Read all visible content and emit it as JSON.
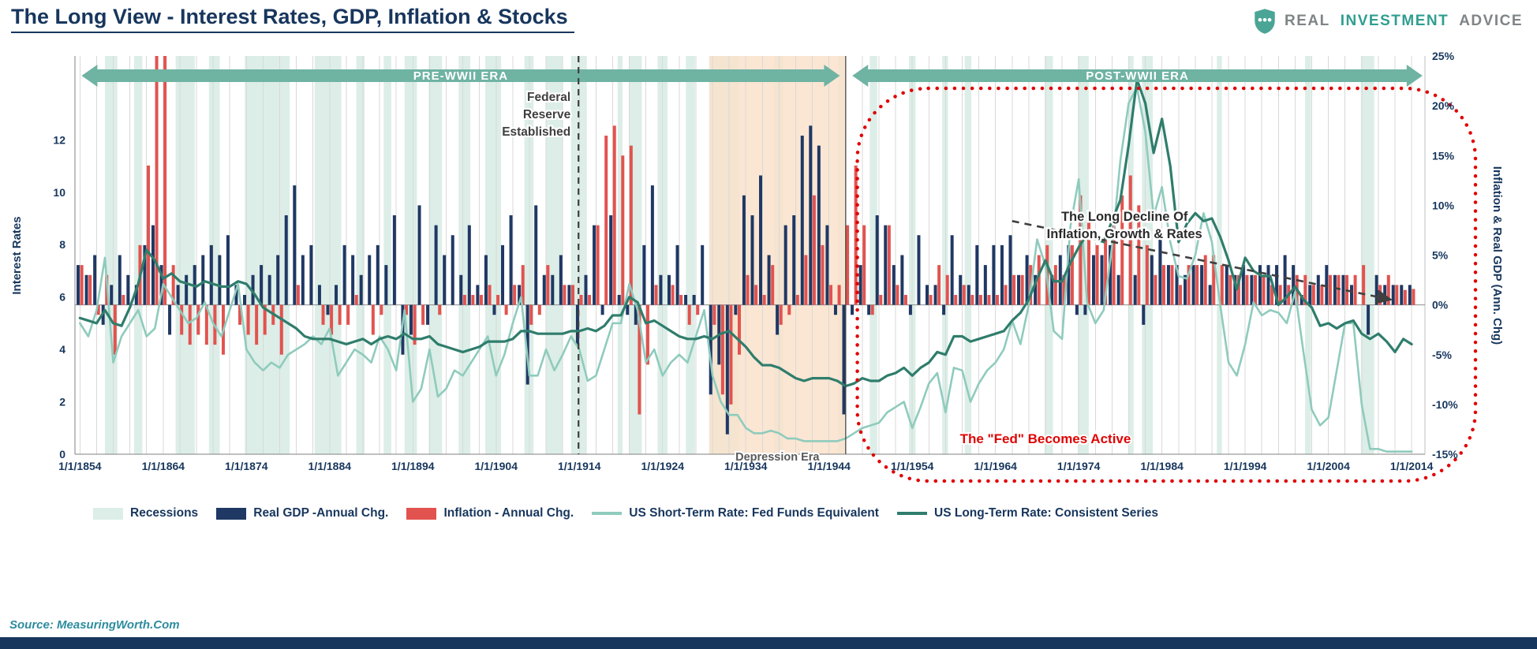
{
  "header": {
    "title": "The Long View - Interest Rates, GDP, Inflation & Stocks",
    "brand": {
      "word1": "REAL",
      "word2": "INVESTMENT",
      "word3": "ADVICE"
    }
  },
  "legend": {
    "items": [
      {
        "label": "Recessions",
        "swatch": "box",
        "color": "#dceee7"
      },
      {
        "label": "Real GDP -Annual Chg.",
        "swatch": "box",
        "color": "#1f3864"
      },
      {
        "label": "Inflation - Annual Chg.",
        "swatch": "box",
        "color": "#e2534f"
      },
      {
        "label": "US Short-Term Rate: Fed Funds Equivalent",
        "swatch": "line",
        "color": "#8fcbbd"
      },
      {
        "label": "US Long-Term Rate: Consistent Series",
        "swatch": "line",
        "color": "#2f7d6c"
      }
    ]
  },
  "footer": {
    "source": "Source: MeasuringWorth.Com"
  },
  "chart_data": {
    "type": "combo-bar-line",
    "title": "The Long View - Interest Rates, GDP, Inflation & Stocks",
    "start_year": 1854,
    "end_year": 2014,
    "x_ticks": {
      "years": [
        1854,
        1864,
        1874,
        1884,
        1894,
        1904,
        1914,
        1924,
        1934,
        1944,
        1954,
        1964,
        1974,
        1984,
        1994,
        2004,
        2014
      ],
      "labels": [
        "1/1/1854",
        "1/1/1864",
        "1/1/1874",
        "1/1/1884",
        "1/1/1894",
        "1/1/1904",
        "1/1/1914",
        "1/1/1924",
        "1/1/1934",
        "1/1/1944",
        "1/1/1954",
        "1/1/1964",
        "1/1/1974",
        "1/1/1984",
        "1/1/1994",
        "1/1/2004",
        "1/1/2014"
      ]
    },
    "left_axis": {
      "title": "Interest Rates",
      "min": 0,
      "max": 15.2,
      "ticks": [
        0,
        2,
        4,
        6,
        8,
        10,
        12
      ]
    },
    "right_axis": {
      "title": "Inflation & Real GDP (Ann. Chg)",
      "min": -15,
      "max": 25,
      "tick_values": [
        25,
        20,
        15,
        10,
        5,
        0,
        -5,
        -10,
        -15
      ],
      "tick_labels": [
        "25%",
        "20%",
        "15%",
        "10%",
        "5%",
        "0%",
        "-5%",
        "-10%",
        "-15%"
      ]
    },
    "series": [
      {
        "name": "Real GDP -Annual Chg.",
        "type": "bar",
        "axis": "right",
        "color": "#1f3864",
        "values": [
          4,
          3,
          5,
          -2,
          2,
          5,
          3,
          2,
          6,
          8,
          4,
          -3,
          2,
          3,
          4,
          5,
          6,
          5,
          7,
          2,
          1,
          3,
          4,
          3,
          5,
          9,
          12,
          5,
          6,
          2,
          -1,
          2,
          6,
          5,
          3,
          5,
          6,
          4,
          9,
          -5,
          -3,
          10,
          -2,
          8,
          5,
          7,
          3,
          8,
          2,
          5,
          -1,
          6,
          9,
          2,
          -8,
          10,
          3,
          3,
          5,
          2,
          -4,
          3,
          8,
          -1,
          9,
          1,
          -1,
          -2,
          6,
          12,
          3,
          3,
          6,
          1,
          1,
          6,
          -9,
          -6,
          -13,
          -1,
          11,
          9,
          13,
          5,
          -3,
          8,
          9,
          17,
          18,
          16,
          8,
          -1,
          -11,
          -1,
          4,
          -1,
          9,
          8,
          4,
          5,
          -1,
          7,
          2,
          2,
          -1,
          7,
          3,
          2,
          6,
          4,
          6,
          6,
          7,
          3,
          5,
          3,
          0,
          3,
          5,
          6,
          -1,
          -1,
          5,
          5,
          6,
          3,
          0,
          3,
          -2,
          5,
          7,
          4,
          4,
          3,
          4,
          4,
          2,
          0,
          4,
          3,
          4,
          3,
          4,
          4,
          4,
          5,
          4,
          1,
          2,
          3,
          4,
          3,
          3,
          2,
          0,
          -3,
          3,
          2,
          2,
          2,
          2
        ]
      },
      {
        "name": "Inflation - Annual Chg.",
        "type": "bar",
        "axis": "right",
        "color": "#e2534f",
        "values": [
          4,
          3,
          -1,
          3,
          -5,
          1,
          0,
          6,
          14,
          25,
          25,
          4,
          -3,
          -4,
          -3,
          -4,
          -4,
          -5,
          0,
          -2,
          -3,
          -4,
          -3,
          -2,
          -5,
          0,
          2,
          0,
          0,
          -2,
          -3,
          -2,
          -2,
          1,
          0,
          -3,
          -1,
          0,
          0,
          -1,
          -4,
          -2,
          0,
          -1,
          0,
          0,
          1,
          1,
          1,
          2,
          1,
          -1,
          2,
          4,
          -2,
          -1,
          4,
          0,
          2,
          2,
          1,
          1,
          8,
          17,
          18,
          15,
          16,
          -11,
          -6,
          2,
          0,
          2,
          1,
          -2,
          -1,
          0,
          -2,
          -9,
          -10,
          -5,
          3,
          2,
          1,
          4,
          -2,
          -1,
          1,
          5,
          11,
          6,
          2,
          2,
          8,
          14,
          8,
          -1,
          1,
          8,
          2,
          1,
          0,
          0,
          1,
          4,
          3,
          1,
          2,
          1,
          1,
          1,
          1,
          2,
          3,
          3,
          4,
          5,
          6,
          4,
          3,
          6,
          11,
          9,
          6,
          7,
          8,
          11,
          13,
          10,
          6,
          3,
          4,
          4,
          2,
          4,
          4,
          5,
          5,
          4,
          3,
          3,
          3,
          3,
          3,
          2,
          2,
          2,
          3,
          3,
          2,
          2,
          3,
          3,
          3,
          3,
          4,
          0,
          2,
          3,
          2,
          1.5,
          1.6
        ]
      },
      {
        "name": "US Short-Term Rate: Fed Funds Equivalent",
        "type": "line",
        "axis": "left",
        "color": "#8fcbbd",
        "values": [
          5,
          4.5,
          5.5,
          7.5,
          3.5,
          4.5,
          5,
          5.5,
          4.5,
          4.8,
          6.5,
          6,
          5.5,
          5,
          5.2,
          5.8,
          5,
          4.5,
          5.5,
          6.5,
          4,
          3.5,
          3.2,
          3.5,
          3.3,
          3.8,
          4,
          4.2,
          4.5,
          4.2,
          4.8,
          3,
          3.5,
          4,
          3.8,
          3.5,
          4.5,
          4,
          3.2,
          5.5,
          2,
          2.5,
          4,
          2.2,
          2.5,
          3.2,
          3,
          3.5,
          4,
          4.5,
          3,
          3.8,
          5,
          6,
          3,
          3,
          4,
          3.2,
          3.8,
          4.5,
          4,
          2.8,
          3,
          4,
          5,
          5,
          6.5,
          5.5,
          3.5,
          4,
          3,
          3.5,
          3.8,
          3.5,
          4.5,
          5.5,
          3,
          2,
          1.5,
          1.5,
          1,
          0.8,
          0.8,
          0.9,
          0.8,
          0.6,
          0.6,
          0.5,
          0.5,
          0.5,
          0.5,
          0.5,
          0.6,
          0.8,
          1,
          1.1,
          1.2,
          1.6,
          1.8,
          2,
          1,
          1.8,
          2.7,
          3.1,
          1.6,
          3.3,
          3.2,
          2,
          2.7,
          3.2,
          3.5,
          4,
          5.1,
          4.2,
          5.7,
          8.2,
          7.2,
          4.7,
          4.4,
          8.7,
          10.5,
          5.8,
          5,
          5.5,
          7.9,
          11.2,
          13.4,
          14,
          12.3,
          9.1,
          10.2,
          8.1,
          6.8,
          6.7,
          7.6,
          9.2,
          8.1,
          5.7,
          3.5,
          3,
          4.2,
          5.8,
          5.3,
          5.5,
          5.4,
          5,
          6.2,
          3.9,
          1.7,
          1.1,
          1.4,
          3.2,
          5,
          5,
          1.9,
          0.2,
          0.2,
          0.1,
          0.1,
          0.1,
          0.1
        ]
      },
      {
        "name": "US Long-Term Rate: Consistent Series",
        "type": "line",
        "axis": "left",
        "color": "#2f7d6c",
        "values": [
          5.2,
          5.1,
          5,
          5.5,
          5,
          4.9,
          5.6,
          6.5,
          7.8,
          7.4,
          6.7,
          6.9,
          6.6,
          6.5,
          6.4,
          6.6,
          6.5,
          6.4,
          6.4,
          6.6,
          6.5,
          6.1,
          5.6,
          5.4,
          5.2,
          5,
          4.8,
          4.5,
          4.4,
          4.4,
          4.4,
          4.3,
          4.2,
          4.3,
          4.4,
          4.2,
          4.4,
          4.5,
          4.4,
          4.6,
          4.4,
          4.4,
          4.5,
          4.2,
          4.1,
          4,
          3.9,
          4,
          4.1,
          4.3,
          4.3,
          4.3,
          4.4,
          4.7,
          4.7,
          4.6,
          4.6,
          4.6,
          4.6,
          4.7,
          4.7,
          4.8,
          4.7,
          4.9,
          5.3,
          5.3,
          6,
          5.8,
          5,
          5.1,
          4.9,
          4.7,
          4.5,
          4.4,
          4.4,
          4.5,
          4.4,
          4.6,
          4.7,
          4.4,
          4.1,
          3.7,
          3.4,
          3.4,
          3.3,
          3.1,
          2.9,
          2.8,
          2.9,
          2.9,
          2.9,
          2.8,
          2.6,
          2.7,
          2.9,
          2.8,
          2.8,
          3,
          3.1,
          3.3,
          3,
          3.3,
          3.5,
          3.9,
          3.8,
          4.5,
          4.5,
          4.3,
          4.4,
          4.5,
          4.6,
          4.7,
          5.1,
          5.4,
          5.9,
          6.7,
          7.4,
          6.6,
          6.6,
          7.3,
          7.9,
          8.4,
          8.2,
          8.1,
          8.9,
          9.7,
          11.8,
          14.3,
          13.4,
          11.5,
          12.8,
          11,
          8.1,
          8.8,
          9.2,
          8.9,
          9,
          8.3,
          7.4,
          6.3,
          7.5,
          7,
          6.8,
          6.8,
          5.7,
          6,
          6.4,
          5.9,
          5.6,
          4.9,
          5,
          4.8,
          5,
          5.1,
          4.6,
          4.4,
          4.6,
          4.3,
          3.9,
          4.4,
          4.2
        ]
      }
    ],
    "recessions": [
      [
        1857,
        1858.5
      ],
      [
        1860.5,
        1861.5
      ],
      [
        1865.5,
        1867.8
      ],
      [
        1869.5,
        1870.8
      ],
      [
        1873.8,
        1879.2
      ],
      [
        1882.2,
        1885.4
      ],
      [
        1887.2,
        1888.2
      ],
      [
        1890.5,
        1891.4
      ],
      [
        1893,
        1894.5
      ],
      [
        1895.9,
        1897.5
      ],
      [
        1899.5,
        1900.9
      ],
      [
        1902.7,
        1904.6
      ],
      [
        1907.4,
        1908.5
      ],
      [
        1910,
        1912
      ],
      [
        1913,
        1914.9
      ],
      [
        1918.6,
        1919.2
      ],
      [
        1920,
        1921.5
      ],
      [
        1923.4,
        1924.6
      ],
      [
        1926.8,
        1927.9
      ],
      [
        1929.6,
        1933.2
      ],
      [
        1937.4,
        1938.5
      ],
      [
        1945.1,
        1945.8
      ],
      [
        1948.9,
        1949.8
      ],
      [
        1953.6,
        1954.4
      ],
      [
        1957.6,
        1958.3
      ],
      [
        1960.3,
        1961.1
      ],
      [
        1969.9,
        1970.9
      ],
      [
        1973.9,
        1975.2
      ],
      [
        1980,
        1980.6
      ],
      [
        1981.6,
        1982.9
      ],
      [
        1990.6,
        1991.2
      ],
      [
        2001.2,
        2001.9
      ],
      [
        2007.9,
        2009.5
      ]
    ],
    "eras": {
      "pre": {
        "label": "PRE-WWII ERA",
        "start": 1854.2,
        "end": 1945.3
      },
      "post": {
        "label": "POST-WWII ERA",
        "start": 1946.8,
        "end": 2015.3
      },
      "divider_year": 1946,
      "arrow_color": "#6fb3a3"
    },
    "depression": {
      "label": "Depression Era",
      "start": 1929.6,
      "end": 1946,
      "color": "#f9e2cb"
    },
    "annotations": {
      "fed_established": {
        "lines": [
          "Federal",
          "Reserve",
          "Established"
        ],
        "year": 1913.9
      },
      "fed_active": {
        "label": "The \"Fed\" Becomes Active",
        "box_start_year": 1947.4,
        "label_year": 1970,
        "color": "#e00404"
      },
      "long_decline": {
        "lines": [
          "The Long Decline Of",
          "Inflation, Growth & Rates"
        ],
        "from": {
          "year": 1966,
          "value": 8.9
        },
        "to": {
          "year": 2011.5,
          "value": 5.9
        },
        "text_year": 1979.5
      }
    },
    "colors": {
      "recession": "#dceee7",
      "grid": "#d9d9d9",
      "axis_text": "#17365d",
      "annotation": "#3f3f3f",
      "zero_line": "#8c8c8c"
    }
  }
}
